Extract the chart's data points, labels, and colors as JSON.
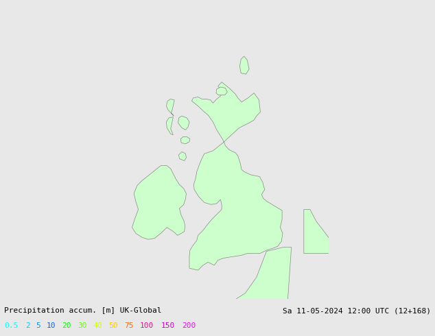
{
  "title_left": "Precipitation accum. [m] UK-Global",
  "title_right": "Sa 11-05-2024 12:00 UTC (12+168)",
  "legend_values": [
    "0.5",
    "2",
    "5",
    "10",
    "20",
    "30",
    "40",
    "50",
    "75",
    "100",
    "150",
    "200"
  ],
  "legend_colors": [
    "#00ffff",
    "#00ccff",
    "#0099ff",
    "#0066ff",
    "#00ff00",
    "#66ff00",
    "#ccff00",
    "#ffcc00",
    "#ff6600",
    "#ff0099",
    "#cc00cc",
    "#ff00ff"
  ],
  "bg_color": "#e8e8e8",
  "land_color": "#ccffcc",
  "border_color": "#888888",
  "text_color": "#000000",
  "title_fontsize": 8.0,
  "legend_fontsize": 8.0,
  "fig_width": 6.34,
  "fig_height": 4.9,
  "dpi": 100,
  "map_extent": [
    -11.5,
    5.5,
    48.5,
    61.5
  ]
}
